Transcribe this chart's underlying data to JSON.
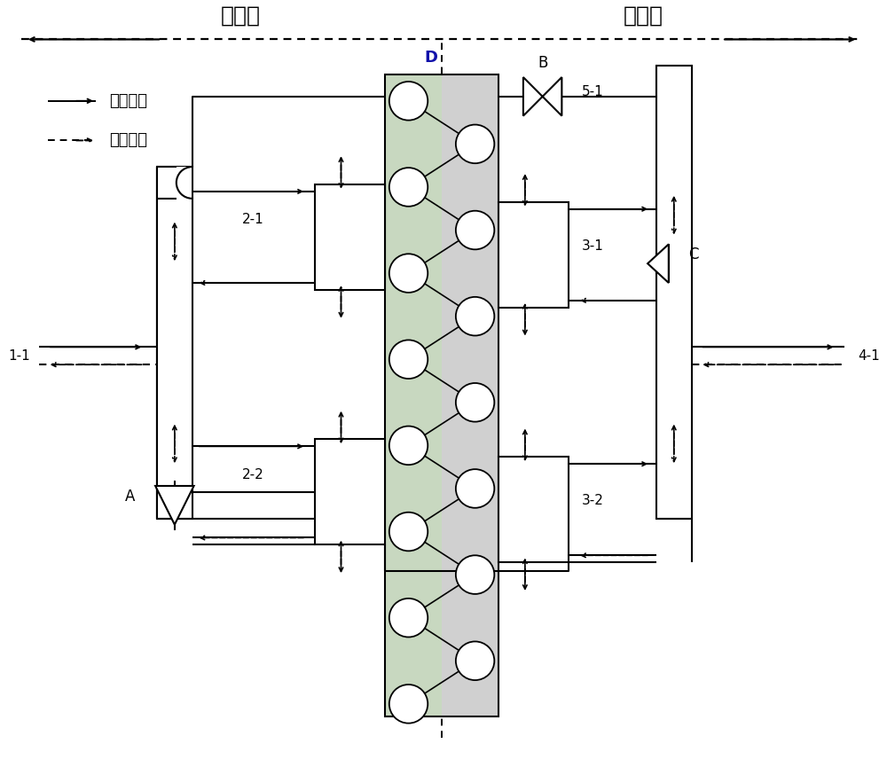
{
  "bg_color": "#ffffff",
  "fig_width": 10.0,
  "fig_height": 8.65,
  "title_left": "背风侧",
  "title_right": "迎风侧",
  "legend_cooling": "制冷流向",
  "legend_heating": "制热流向",
  "label_11": "1-1",
  "label_21": "2-1",
  "label_22": "2-2",
  "label_31": "3-1",
  "label_32": "3-2",
  "label_41": "4-1",
  "label_51": "5-1",
  "label_A": "A",
  "label_B": "B",
  "label_C": "C",
  "label_D": "D",
  "hx_color_left": "#c8d8c0",
  "hx_color_right": "#d0d0d0"
}
